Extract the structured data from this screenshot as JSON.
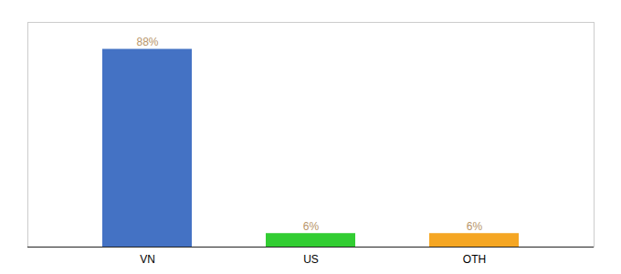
{
  "chart_data": {
    "type": "bar",
    "categories": [
      "VN",
      "US",
      "OTH"
    ],
    "values": [
      88,
      6,
      6
    ],
    "colors": [
      "#4472c4",
      "#32cd32",
      "#f5a623"
    ],
    "value_labels": [
      "88%",
      "6%",
      "6%"
    ],
    "ylim": [
      0,
      100
    ],
    "data_labels": true,
    "tick_labels": "x"
  }
}
